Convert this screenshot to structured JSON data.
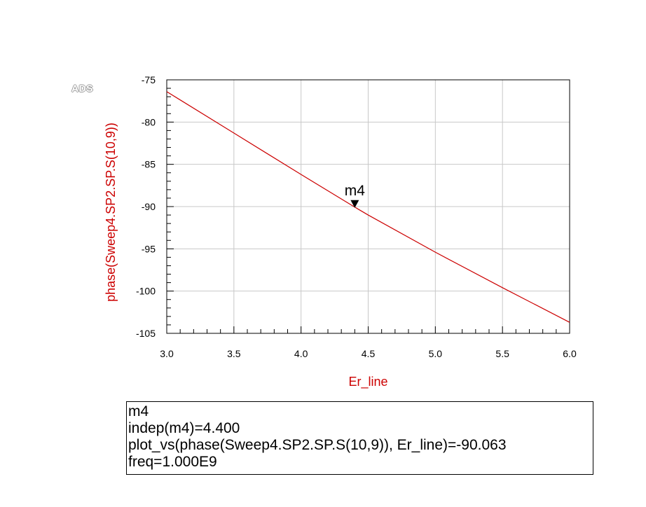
{
  "logo": "ADS",
  "chart_data": {
    "type": "line",
    "title": "",
    "xlabel": "Er_line",
    "ylabel": "phase(Sweep4.SP2.SP.S(10,9))",
    "xlim": [
      3.0,
      6.0
    ],
    "ylim": [
      -105,
      -75
    ],
    "x_ticks": [
      "3.0",
      "3.5",
      "4.0",
      "4.5",
      "5.0",
      "5.5",
      "6.0"
    ],
    "y_ticks": [
      "-75",
      "-80",
      "-85",
      "-90",
      "-95",
      "-100",
      "-105"
    ],
    "grid": true,
    "colors": {
      "series": "#cc0000",
      "ylabel": "#cc0000",
      "xlabel": "#cc0000"
    },
    "series": [
      {
        "x": [
          3.0,
          3.5,
          4.0,
          4.4,
          4.5,
          5.0,
          5.5,
          6.0
        ],
        "y": [
          -76.4,
          -81.3,
          -86.2,
          -90.063,
          -91.0,
          -95.4,
          -99.6,
          -103.7
        ]
      }
    ],
    "markers": [
      {
        "name": "m4",
        "x": 4.4,
        "y": -90.063
      }
    ]
  },
  "marker_readout": {
    "lines": [
      "m4",
      "indep(m4)=4.400",
      "plot_vs(phase(Sweep4.SP2.SP.S(10,9)), Er_line)=-90.063",
      "freq=1.000E9"
    ]
  }
}
